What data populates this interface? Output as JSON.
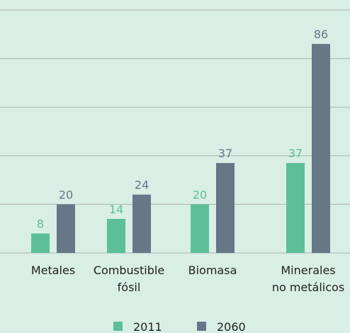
{
  "chart_data": {
    "type": "bar",
    "categories": [
      "Metales",
      "Combustible\nfósil",
      "Biomasa",
      "Minerales\nno metálicos"
    ],
    "series": [
      {
        "name": "2011",
        "color": "#5dbf98",
        "values": [
          8,
          14,
          20,
          37
        ]
      },
      {
        "name": "2060",
        "color": "#667788",
        "values": [
          20,
          24,
          37,
          86
        ]
      }
    ],
    "ylim": [
      0,
      100
    ],
    "yticks": [
      0,
      20,
      40,
      60,
      80,
      100
    ],
    "grid": true
  }
}
